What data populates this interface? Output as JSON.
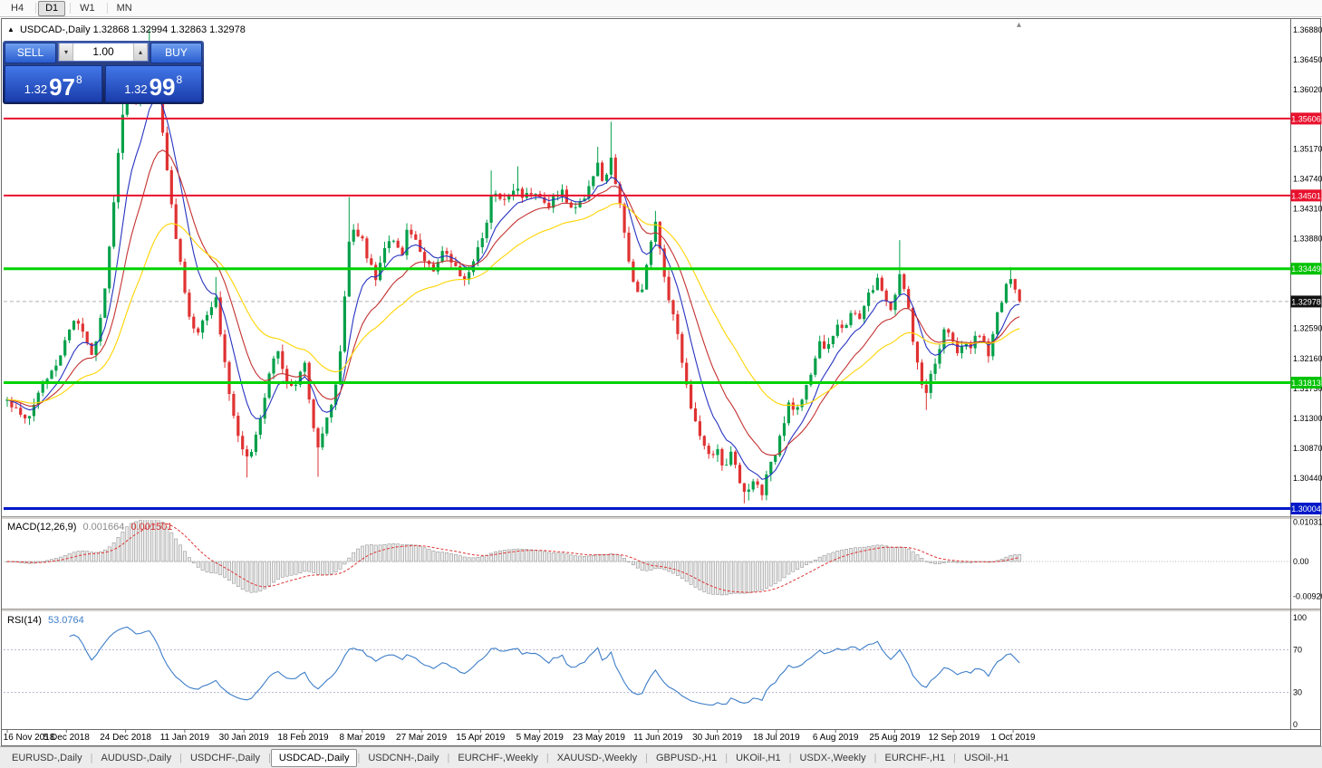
{
  "periods": {
    "items": [
      {
        "label": "H4",
        "active": false
      },
      {
        "label": "D1",
        "active": true
      },
      {
        "label": "W1",
        "active": false
      },
      {
        "label": "MN",
        "active": false
      }
    ]
  },
  "chart_header": {
    "marker": "▲",
    "symbol": "USDCAD-,Daily",
    "ohlc": "1.32868 1.32994 1.32863 1.32978"
  },
  "scroll_marker": "▴",
  "trade_panel": {
    "sell_label": "SELL",
    "buy_label": "BUY",
    "volume": "1.00",
    "spinner_down": "▾",
    "spinner_up": "▴",
    "sell_price": {
      "prefix": "1.32",
      "big": "97",
      "sup": "8"
    },
    "buy_price": {
      "prefix": "1.32",
      "big": "99",
      "sup": "8"
    }
  },
  "price_axis": {
    "plain_labels": [
      1.3688,
      1.3645,
      1.3602,
      1.3517,
      1.3474,
      1.3431,
      1.3388,
      1.3259,
      1.3216,
      1.3173,
      1.313,
      1.3087,
      1.3044
    ],
    "badges": [
      {
        "label": "1.35606",
        "price": 1.35606,
        "bg": "#e8112d",
        "fg": "#ffffff"
      },
      {
        "label": "1.34501",
        "price": 1.34501,
        "bg": "#e8112d",
        "fg": "#ffffff"
      },
      {
        "label": "1.33449",
        "price": 1.33449,
        "bg": "#00c200",
        "fg": "#ffffff"
      },
      {
        "label": "1.32978",
        "price": 1.32978,
        "bg": "#111111",
        "fg": "#ffffff"
      },
      {
        "label": "1.31813",
        "price": 1.31813,
        "bg": "#00c200",
        "fg": "#ffffff"
      },
      {
        "label": "1.30004",
        "price": 1.30004,
        "bg": "#0018c8",
        "fg": "#ffffff"
      }
    ]
  },
  "chart_data": {
    "type": "candlestick",
    "symbol": "USDCAD",
    "timeframe": "Daily",
    "visible_range": {
      "price_min": 1.298,
      "price_max": 1.3698,
      "date_start": "16 Nov 2018",
      "date_end": "1 Oct 2019"
    },
    "current_price": 1.32978,
    "ohlc_last": {
      "open": 1.32868,
      "high": 1.32994,
      "low": 1.32863,
      "close": 1.32978
    },
    "horizontal_lines": [
      {
        "price": 1.35606,
        "color": "#e8112d",
        "width": 2
      },
      {
        "price": 1.34501,
        "color": "#e8112d",
        "width": 2
      },
      {
        "price": 1.33449,
        "color": "#00d200",
        "width": 3
      },
      {
        "price": 1.31813,
        "color": "#00d200",
        "width": 3
      },
      {
        "price": 1.30004,
        "color": "#0018c8",
        "width": 3
      }
    ],
    "moving_averages": [
      {
        "color": "#2633c0",
        "period": 8
      },
      {
        "color": "#c43131",
        "period": 16
      },
      {
        "color": "#ffd400",
        "period": 34
      }
    ],
    "candle_colors": {
      "up": "#04a04a",
      "down": "#e03232"
    },
    "price_anchors": [
      [
        8,
        1.3155
      ],
      [
        20,
        1.3138
      ],
      [
        30,
        1.3122
      ],
      [
        40,
        1.316
      ],
      [
        50,
        1.3185
      ],
      [
        60,
        1.3205
      ],
      [
        70,
        1.3232
      ],
      [
        80,
        1.3275
      ],
      [
        88,
        1.3262
      ],
      [
        96,
        1.3238
      ],
      [
        103,
        1.3222
      ],
      [
        110,
        1.3268
      ],
      [
        118,
        1.3338
      ],
      [
        126,
        1.3452
      ],
      [
        133,
        1.3548
      ],
      [
        140,
        1.3608
      ],
      [
        147,
        1.3592
      ],
      [
        153,
        1.3572
      ],
      [
        159,
        1.3625
      ],
      [
        164,
        1.3656
      ],
      [
        170,
        1.3638
      ],
      [
        177,
        1.3568
      ],
      [
        184,
        1.3488
      ],
      [
        191,
        1.3418
      ],
      [
        198,
        1.3358
      ],
      [
        205,
        1.3308
      ],
      [
        211,
        1.3266
      ],
      [
        218,
        1.3252
      ],
      [
        225,
        1.3268
      ],
      [
        232,
        1.3288
      ],
      [
        238,
        1.3304
      ],
      [
        244,
        1.3244
      ],
      [
        251,
        1.3184
      ],
      [
        258,
        1.3138
      ],
      [
        264,
        1.31
      ],
      [
        271,
        1.3068
      ],
      [
        278,
        1.3088
      ],
      [
        285,
        1.3118
      ],
      [
        292,
        1.3162
      ],
      [
        299,
        1.3214
      ],
      [
        306,
        1.3228
      ],
      [
        313,
        1.3198
      ],
      [
        320,
        1.3168
      ],
      [
        328,
        1.3186
      ],
      [
        336,
        1.3206
      ],
      [
        343,
        1.3146
      ],
      [
        350,
        1.3084
      ],
      [
        357,
        1.3108
      ],
      [
        364,
        1.3142
      ],
      [
        371,
        1.318
      ],
      [
        377,
        1.3244
      ],
      [
        382,
        1.3326
      ],
      [
        387,
        1.3412
      ],
      [
        394,
        1.3396
      ],
      [
        401,
        1.338
      ],
      [
        408,
        1.3352
      ],
      [
        415,
        1.3326
      ],
      [
        422,
        1.3358
      ],
      [
        429,
        1.339
      ],
      [
        436,
        1.3376
      ],
      [
        443,
        1.3364
      ],
      [
        450,
        1.34
      ],
      [
        457,
        1.3386
      ],
      [
        464,
        1.3372
      ],
      [
        472,
        1.3352
      ],
      [
        480,
        1.3338
      ],
      [
        488,
        1.3366
      ],
      [
        496,
        1.3358
      ],
      [
        504,
        1.3342
      ],
      [
        512,
        1.3324
      ],
      [
        520,
        1.3348
      ],
      [
        528,
        1.3372
      ],
      [
        535,
        1.3404
      ],
      [
        542,
        1.3446
      ],
      [
        549,
        1.3458
      ],
      [
        556,
        1.3438
      ],
      [
        563,
        1.345
      ],
      [
        570,
        1.346
      ],
      [
        577,
        1.344
      ],
      [
        584,
        1.346
      ],
      [
        591,
        1.3454
      ],
      [
        598,
        1.3438
      ],
      [
        605,
        1.3432
      ],
      [
        612,
        1.345
      ],
      [
        619,
        1.346
      ],
      [
        626,
        1.3442
      ],
      [
        633,
        1.343
      ],
      [
        640,
        1.3442
      ],
      [
        647,
        1.3452
      ],
      [
        654,
        1.348
      ],
      [
        661,
        1.35
      ],
      [
        667,
        1.3462
      ],
      [
        673,
        1.3506
      ],
      [
        679,
        1.3474
      ],
      [
        685,
        1.3428
      ],
      [
        691,
        1.338
      ],
      [
        697,
        1.3342
      ],
      [
        704,
        1.3306
      ],
      [
        711,
        1.3318
      ],
      [
        717,
        1.3378
      ],
      [
        723,
        1.341
      ],
      [
        729,
        1.3372
      ],
      [
        736,
        1.3306
      ],
      [
        743,
        1.3278
      ],
      [
        750,
        1.3232
      ],
      [
        757,
        1.3186
      ],
      [
        764,
        1.314
      ],
      [
        771,
        1.3108
      ],
      [
        778,
        1.3088
      ],
      [
        785,
        1.3072
      ],
      [
        792,
        1.3082
      ],
      [
        799,
        1.3062
      ],
      [
        806,
        1.308
      ],
      [
        813,
        1.3052
      ],
      [
        820,
        1.3032
      ],
      [
        827,
        1.3022
      ],
      [
        834,
        1.3042
      ],
      [
        841,
        1.3022
      ],
      [
        848,
        1.3056
      ],
      [
        856,
        1.3078
      ],
      [
        863,
        1.3112
      ],
      [
        870,
        1.3148
      ],
      [
        877,
        1.3132
      ],
      [
        884,
        1.3158
      ],
      [
        891,
        1.3178
      ],
      [
        898,
        1.3206
      ],
      [
        905,
        1.3238
      ],
      [
        912,
        1.3222
      ],
      [
        919,
        1.3252
      ],
      [
        926,
        1.3274
      ],
      [
        933,
        1.3252
      ],
      [
        940,
        1.3288
      ],
      [
        947,
        1.3268
      ],
      [
        954,
        1.3298
      ],
      [
        961,
        1.3308
      ],
      [
        968,
        1.3328
      ],
      [
        975,
        1.3302
      ],
      [
        982,
        1.3282
      ],
      [
        989,
        1.3312
      ],
      [
        995,
        1.3342
      ],
      [
        1001,
        1.3298
      ],
      [
        1008,
        1.3242
      ],
      [
        1015,
        1.3192
      ],
      [
        1022,
        1.316
      ],
      [
        1029,
        1.3198
      ],
      [
        1036,
        1.3228
      ],
      [
        1043,
        1.3258
      ],
      [
        1050,
        1.3242
      ],
      [
        1057,
        1.3222
      ],
      [
        1064,
        1.3248
      ],
      [
        1071,
        1.3232
      ],
      [
        1078,
        1.3258
      ],
      [
        1085,
        1.3242
      ],
      [
        1092,
        1.3222
      ],
      [
        1099,
        1.3268
      ],
      [
        1106,
        1.3302
      ],
      [
        1113,
        1.3332
      ],
      [
        1120,
        1.3312
      ],
      [
        1128,
        1.3298
      ]
    ],
    "wick_extremes": [
      [
        133,
        1.3672
      ],
      [
        152,
        1.3645
      ],
      [
        164,
        1.3689
      ],
      [
        238,
        1.3333
      ],
      [
        271,
        1.3045
      ],
      [
        350,
        1.3046
      ],
      [
        387,
        1.3448
      ],
      [
        542,
        1.3486
      ],
      [
        570,
        1.3492
      ],
      [
        661,
        1.352
      ],
      [
        673,
        1.3556
      ],
      [
        723,
        1.3428
      ],
      [
        820,
        1.3008
      ],
      [
        827,
        1.3012
      ],
      [
        841,
        1.3014
      ],
      [
        995,
        1.3386
      ],
      [
        1022,
        1.3142
      ],
      [
        1113,
        1.3347
      ]
    ],
    "dates": [
      "16 Nov 2018",
      "5 Dec 2018",
      "24 Dec 2018",
      "11 Jan 2019",
      "30 Jan 2019",
      "18 Feb 2019",
      "8 Mar 2019",
      "27 Mar 2019",
      "15 Apr 2019",
      "5 May 2019",
      "23 May 2019",
      "11 Jun 2019",
      "30 Jun 2019",
      "18 Jul 2019",
      "6 Aug 2019",
      "25 Aug 2019",
      "12 Sep 2019",
      "1 Oct 2019"
    ],
    "indicators": {
      "macd": {
        "title": "MACD(12,26,9)",
        "value_main": "0.001664",
        "value_signal": "0.001501",
        "params": [
          12,
          26,
          9
        ],
        "axis_labels": [
          {
            "text": "0.01031",
            "value": 0.01031
          },
          {
            "text": "0.00",
            "value": 0
          },
          {
            "text": "-0.00920",
            "value": -0.0092
          }
        ]
      },
      "rsi": {
        "title": "RSI(14)",
        "value": "53.0764",
        "period": 14,
        "levels": [
          100,
          70,
          30,
          0
        ],
        "dashed_levels": [
          70,
          30
        ]
      }
    }
  },
  "tabs": {
    "items": [
      "EURUSD-,Daily",
      "AUDUSD-,Daily",
      "USDCHF-,Daily",
      "USDCAD-,Daily",
      "USDCNH-,Daily",
      "EURCHF-,Weekly",
      "XAUUSD-,Weekly",
      "GBPUSD-,H1",
      "UKOil-,H1",
      "USDX-,Weekly",
      "EURCHF-,H1",
      "USOil-,H1"
    ],
    "active_index": 3
  }
}
